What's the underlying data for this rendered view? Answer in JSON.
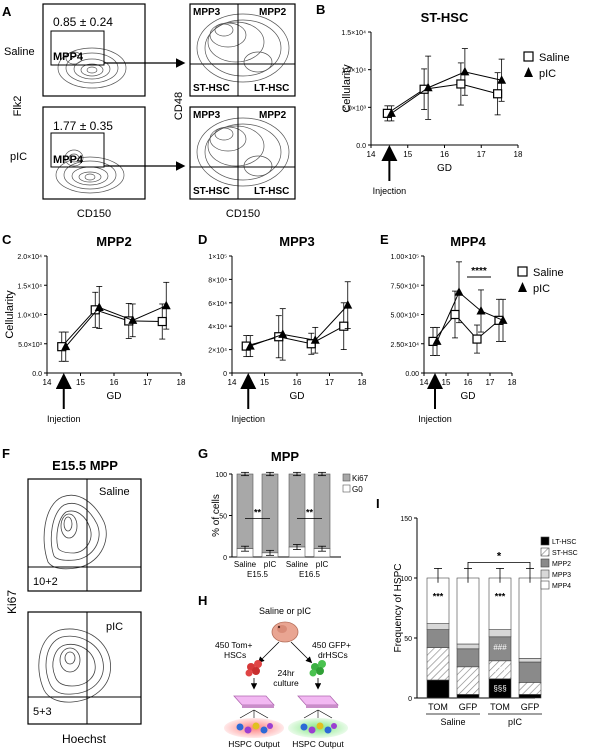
{
  "panel_letters": [
    "A",
    "B",
    "C",
    "D",
    "E",
    "F",
    "G",
    "H",
    "I"
  ],
  "panel_a": {
    "row_labels": [
      "Saline",
      "pIC"
    ],
    "flow_left_saline": {
      "stat": "0.85 ± 0.24",
      "gate": "MPP4"
    },
    "flow_left_pic": {
      "stat": "1.77 ± 0.35",
      "gate": "MPP4"
    },
    "quadrants": [
      "MPP3",
      "MPP2",
      "ST-HSC",
      "LT-HSC"
    ],
    "x_axis_left": "CD150",
    "x_axis_right": "CD150",
    "y_axis_left": "Flk2",
    "y_axis_right": "CD48"
  },
  "panel_f": {
    "title": "E15.5 MPP",
    "saline_label": "Saline",
    "pic_label": "pIC",
    "saline_stat": "10+2",
    "pic_stat": "5+3",
    "ylabel": "Ki67",
    "xlabel": "Hoechst"
  },
  "panel_h": {
    "top": "Saline or pIC",
    "left": [
      "450 Tom+",
      "HSCs"
    ],
    "right": [
      "450 GFP+",
      "drHSCs"
    ],
    "middle": [
      "24hr",
      "culture"
    ],
    "output_left": "HSPC Output",
    "output_right": "HSPC Output"
  },
  "injection_label": "Injection",
  "chart_data": [
    {
      "id": "B",
      "type": "line",
      "title": "ST-HSC",
      "xlabel": "GD",
      "ylabel": "Cellularity",
      "xlim": [
        14,
        18
      ],
      "ylim": [
        0,
        15000
      ],
      "xticks": [
        "14",
        "15",
        "16",
        "17",
        "18"
      ],
      "yticks": [
        {
          "v": 0,
          "t": "0.0"
        },
        {
          "v": 5000,
          "t": "5.0×10³"
        },
        {
          "v": 10000,
          "t": "1.0×10⁴"
        },
        {
          "v": 15000,
          "t": "1.5×10⁴"
        }
      ],
      "x": [
        14.5,
        15.5,
        16.5,
        17.5
      ],
      "series": [
        {
          "name": "Saline",
          "marker": "square",
          "values": [
            4200,
            7400,
            8100,
            6800
          ],
          "err": [
            1000,
            2700,
            2800,
            2800
          ]
        },
        {
          "name": "pIC",
          "marker": "triangle",
          "values": [
            4200,
            7600,
            9700,
            8600
          ],
          "err": [
            1000,
            4200,
            3100,
            2800
          ]
        }
      ],
      "legend": "right"
    },
    {
      "id": "C",
      "type": "line",
      "title": "MPP2",
      "xlabel": "GD",
      "ylabel": "Cellularity",
      "xlim": [
        14,
        18
      ],
      "ylim": [
        0,
        20000
      ],
      "xticks": [
        "14",
        "15",
        "16",
        "17",
        "18"
      ],
      "yticks": [
        {
          "v": 0,
          "t": "0.0"
        },
        {
          "v": 5000,
          "t": "5.0×10³"
        },
        {
          "v": 10000,
          "t": "1.0×10⁴"
        },
        {
          "v": 15000,
          "t": "1.5×10⁴"
        },
        {
          "v": 20000,
          "t": "2.0×10⁴"
        }
      ],
      "x": [
        14.5,
        15.5,
        16.5,
        17.5
      ],
      "series": [
        {
          "name": "Saline",
          "marker": "square",
          "values": [
            4500,
            10800,
            8900,
            8800
          ],
          "err": [
            2500,
            3000,
            3000,
            3000
          ]
        },
        {
          "name": "pIC",
          "marker": "triangle",
          "values": [
            4500,
            11200,
            9000,
            11500
          ],
          "err": [
            2500,
            3600,
            2800,
            4000
          ]
        }
      ]
    },
    {
      "id": "D",
      "type": "line",
      "title": "MPP3",
      "xlabel": "GD",
      "ylabel": "",
      "xlim": [
        14,
        18
      ],
      "ylim": [
        0,
        100000
      ],
      "xticks": [
        "14",
        "15",
        "16",
        "17",
        "18"
      ],
      "yticks": [
        {
          "v": 0,
          "t": "0"
        },
        {
          "v": 20000,
          "t": "2×10⁴"
        },
        {
          "v": 40000,
          "t": "4×10⁴"
        },
        {
          "v": 60000,
          "t": "6×10⁴"
        },
        {
          "v": 80000,
          "t": "8×10⁴"
        },
        {
          "v": 100000,
          "t": "1×10⁵"
        }
      ],
      "x": [
        14.5,
        15.5,
        16.5,
        17.5
      ],
      "series": [
        {
          "name": "Saline",
          "marker": "square",
          "values": [
            23000,
            31000,
            25000,
            40000
          ],
          "err": [
            9000,
            18000,
            9000,
            20000
          ]
        },
        {
          "name": "pIC",
          "marker": "triangle",
          "values": [
            23000,
            33000,
            28000,
            58000
          ],
          "err": [
            9000,
            22000,
            11000,
            20000
          ]
        }
      ]
    },
    {
      "id": "E",
      "type": "line",
      "title": "MPP4",
      "xlabel": "GD",
      "ylabel": "",
      "xlim": [
        14,
        18
      ],
      "ylim": [
        0,
        100000
      ],
      "xticks": [
        "14",
        "15",
        "16",
        "17",
        "18"
      ],
      "yticks": [
        {
          "v": 0,
          "t": "0.00"
        },
        {
          "v": 25000,
          "t": "2.50×10⁴"
        },
        {
          "v": 50000,
          "t": "5.00×10⁴"
        },
        {
          "v": 75000,
          "t": "7.50×10⁴"
        },
        {
          "v": 100000,
          "t": "1.00×10⁵"
        }
      ],
      "x": [
        14.5,
        15.5,
        16.5,
        17.5
      ],
      "series": [
        {
          "name": "Saline",
          "marker": "square",
          "values": [
            27000,
            50000,
            29000,
            45000
          ],
          "err": [
            12000,
            20000,
            12000,
            18000
          ]
        },
        {
          "name": "pIC",
          "marker": "triangle",
          "values": [
            27000,
            69000,
            53000,
            45000
          ],
          "err": [
            12000,
            26000,
            18000,
            18000
          ]
        }
      ],
      "annotations": [
        {
          "text": "****",
          "x": 16.5
        }
      ],
      "legend": "right"
    },
    {
      "id": "G",
      "type": "bar",
      "title": "MPP",
      "ylabel": "% of cells",
      "ylim": [
        0,
        100
      ],
      "yticks": [
        "0",
        "50",
        "100"
      ],
      "groups": [
        "E15.5",
        "E16.5"
      ],
      "categories": [
        "Saline",
        "pIC",
        "Saline",
        "pIC"
      ],
      "series": [
        {
          "name": "Ki67",
          "values": [
            90,
            95,
            88,
            90
          ]
        },
        {
          "name": "G0",
          "values": [
            10,
            5,
            12,
            10
          ]
        }
      ],
      "annotations": [
        "**",
        "**"
      ],
      "legend": "top-right"
    },
    {
      "id": "I",
      "type": "bar",
      "title": "",
      "ylabel": "Frequency of HSPC",
      "ylim": [
        0,
        150
      ],
      "yticks": [
        "0",
        "50",
        "100",
        "150"
      ],
      "categories": [
        "TOM",
        "GFP",
        "TOM",
        "GFP"
      ],
      "groups": [
        "Saline",
        "pIC"
      ],
      "series": [
        {
          "name": "LT-HSC",
          "values": [
            15,
            3,
            16,
            3
          ]
        },
        {
          "name": "ST-HSC",
          "values": [
            27,
            23,
            15,
            10
          ]
        },
        {
          "name": "MPP2",
          "values": [
            15,
            15,
            20,
            17
          ]
        },
        {
          "name": "MPP3",
          "values": [
            5,
            4,
            6,
            3
          ]
        },
        {
          "name": "MPP4",
          "values": [
            38,
            55,
            43,
            67
          ]
        }
      ],
      "annotations": [
        "***",
        "***",
        "###",
        "†††",
        "§§§",
        "*"
      ],
      "legend": "top-right"
    }
  ]
}
